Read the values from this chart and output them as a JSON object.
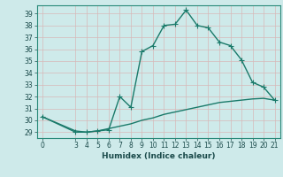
{
  "xlabel": "Humidex (Indice chaleur)",
  "bg_color": "#ceeaea",
  "grid_color": "#b8d8d8",
  "line_color": "#1a7a6a",
  "xlim": [
    -0.5,
    21.5
  ],
  "ylim": [
    28.5,
    39.7
  ],
  "xticks": [
    0,
    3,
    4,
    5,
    6,
    7,
    8,
    9,
    10,
    11,
    12,
    13,
    14,
    15,
    16,
    17,
    18,
    19,
    20,
    21
  ],
  "yticks": [
    29,
    30,
    31,
    32,
    33,
    34,
    35,
    36,
    37,
    38,
    39
  ],
  "curve1_x": [
    0,
    3,
    4,
    5,
    6,
    7,
    8,
    9,
    10,
    11,
    12,
    13,
    14,
    15,
    16,
    17,
    18,
    19,
    20,
    21
  ],
  "curve1_y": [
    30.3,
    29.0,
    29.0,
    29.1,
    29.2,
    32.0,
    31.1,
    35.8,
    36.3,
    38.0,
    38.1,
    39.3,
    38.0,
    37.8,
    36.6,
    36.3,
    35.1,
    33.2,
    32.8,
    31.7
  ],
  "curve2_x": [
    0,
    3,
    4,
    5,
    6,
    7,
    8,
    9,
    10,
    11,
    12,
    13,
    14,
    15,
    16,
    17,
    18,
    19,
    20,
    21
  ],
  "curve2_y": [
    30.3,
    29.1,
    29.0,
    29.1,
    29.3,
    29.5,
    29.7,
    30.0,
    30.2,
    30.5,
    30.7,
    30.9,
    31.1,
    31.3,
    31.5,
    31.6,
    31.7,
    31.8,
    31.85,
    31.7
  ],
  "marker_size": 2.5,
  "line_width": 1.0,
  "tick_fontsize": 5.5,
  "xlabel_fontsize": 6.5
}
